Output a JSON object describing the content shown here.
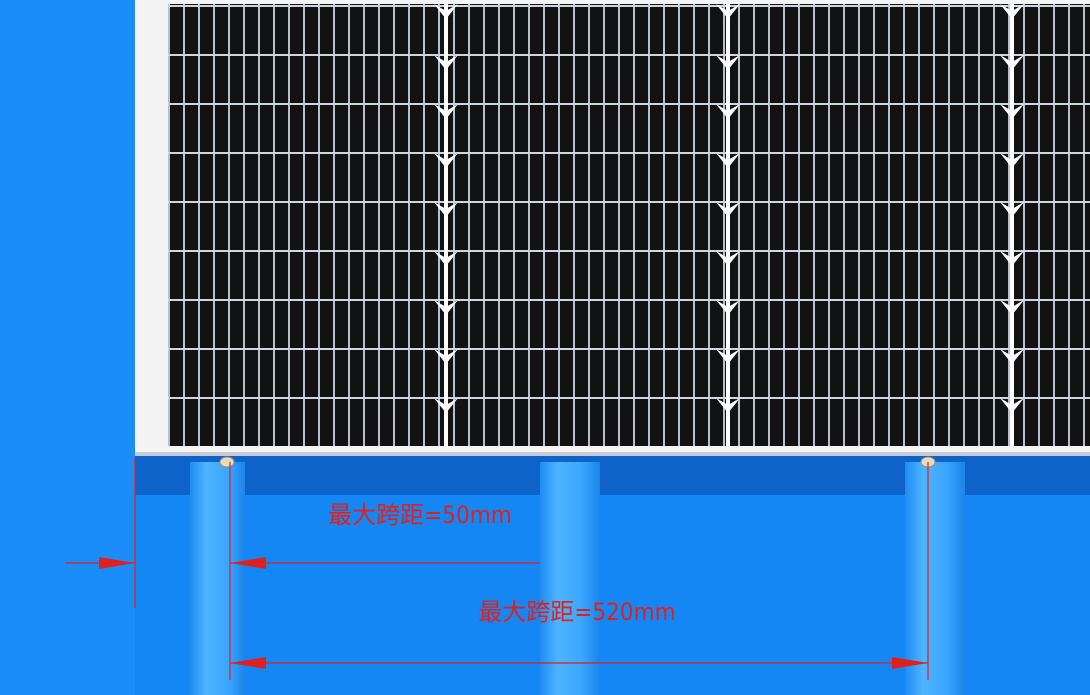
{
  "annotations": {
    "span_short": "最大跨距=50mm",
    "span_long": "最大跨距=520mm"
  }
}
